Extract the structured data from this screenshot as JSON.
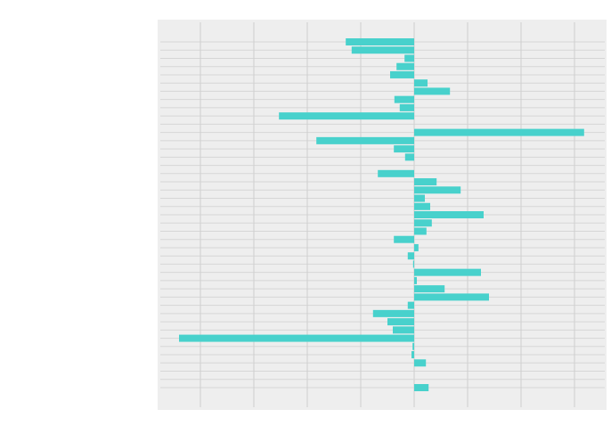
{
  "chart_data": {
    "type": "hbar",
    "categories": [
      null,
      null,
      null,
      null,
      null,
      null,
      null,
      null,
      null,
      null,
      null,
      null,
      null,
      null,
      null,
      null,
      null,
      null,
      null,
      null,
      null,
      null,
      null,
      null,
      null,
      null,
      null,
      null,
      null,
      null,
      null,
      null,
      null,
      null,
      null,
      null,
      null,
      null,
      null,
      null,
      null,
      null,
      null
    ],
    "values": [
      -1.28,
      -1.17,
      -0.18,
      -0.33,
      -0.45,
      0.25,
      0.67,
      -0.37,
      -0.27,
      -2.53,
      0,
      3.18,
      -1.83,
      -0.38,
      -0.17,
      0,
      -0.68,
      0.42,
      0.87,
      0.2,
      0.3,
      1.3,
      0.33,
      0.23,
      -0.38,
      0.08,
      -0.12,
      -0.02,
      1.25,
      0.05,
      0.57,
      1.4,
      -0.12,
      -0.77,
      -0.5,
      -0.4,
      -4.4,
      -0.03,
      -0.05,
      0.22,
      0,
      0,
      0.27
    ],
    "color": "#48d1cc",
    "xlim": [
      -4.8,
      3.6
    ],
    "xticks": [
      -4,
      -3,
      -2,
      -1,
      0,
      1,
      2,
      3
    ],
    "grid": true
  }
}
